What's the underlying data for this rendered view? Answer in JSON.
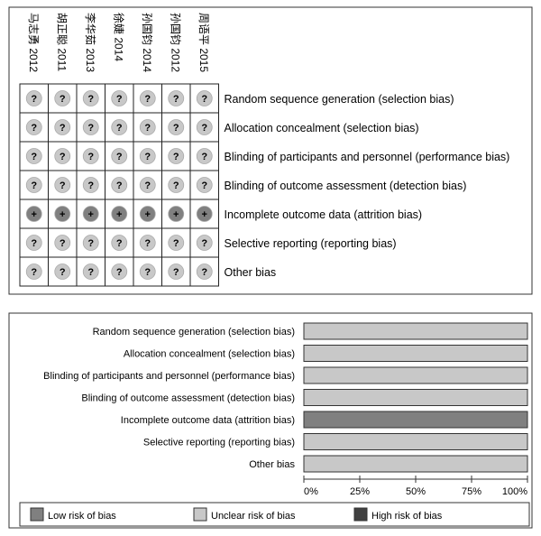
{
  "chart_data": [
    {
      "type": "table",
      "studies": [
        "马志勇 2012",
        "胡正聪 2011",
        "李华茹 2013",
        "徐婕 2014",
        "孙国钧 2014",
        "孙国钧 2012",
        "周语平 2015"
      ],
      "domains": [
        "Random sequence generation (selection bias)",
        "Allocation concealment (selection bias)",
        "Blinding of participants and personnel (performance bias)",
        "Blinding of outcome assessment (detection bias)",
        "Incomplete outcome data (attrition bias)",
        "Selective reporting (reporting bias)",
        "Other bias"
      ],
      "judgements": [
        [
          "?",
          "?",
          "?",
          "?",
          "?",
          "?",
          "?"
        ],
        [
          "?",
          "?",
          "?",
          "?",
          "?",
          "?",
          "?"
        ],
        [
          "?",
          "?",
          "?",
          "?",
          "?",
          "?",
          "?"
        ],
        [
          "?",
          "?",
          "?",
          "?",
          "?",
          "?",
          "?"
        ],
        [
          "+",
          "+",
          "+",
          "+",
          "+",
          "+",
          "+"
        ],
        [
          "?",
          "?",
          "?",
          "?",
          "?",
          "?",
          "?"
        ],
        [
          "?",
          "?",
          "?",
          "?",
          "?",
          "?",
          "?"
        ]
      ]
    },
    {
      "type": "bar",
      "orientation": "horizontal",
      "stacked": true,
      "categories": [
        "Random sequence generation (selection bias)",
        "Allocation concealment (selection bias)",
        "Blinding of participants and personnel (performance bias)",
        "Blinding of outcome assessment (detection bias)",
        "Incomplete outcome data (attrition bias)",
        "Selective reporting (reporting bias)",
        "Other bias"
      ],
      "series": [
        {
          "name": "Low risk of bias",
          "values": [
            0,
            0,
            0,
            0,
            100,
            0,
            0
          ]
        },
        {
          "name": "Unclear risk of bias",
          "values": [
            100,
            100,
            100,
            100,
            0,
            100,
            100
          ]
        },
        {
          "name": "High risk of bias",
          "values": [
            0,
            0,
            0,
            0,
            0,
            0,
            0
          ]
        }
      ],
      "xlim": [
        0,
        100
      ],
      "xticks": [
        0,
        25,
        50,
        75,
        100
      ],
      "xtick_labels": [
        "0%",
        "25%",
        "50%",
        "75%",
        "100%"
      ],
      "legend_position": "bottom"
    }
  ],
  "colors": {
    "low": "#808080",
    "unclear": "#c8c8c8",
    "high": "#404040",
    "frame": "#333333"
  }
}
